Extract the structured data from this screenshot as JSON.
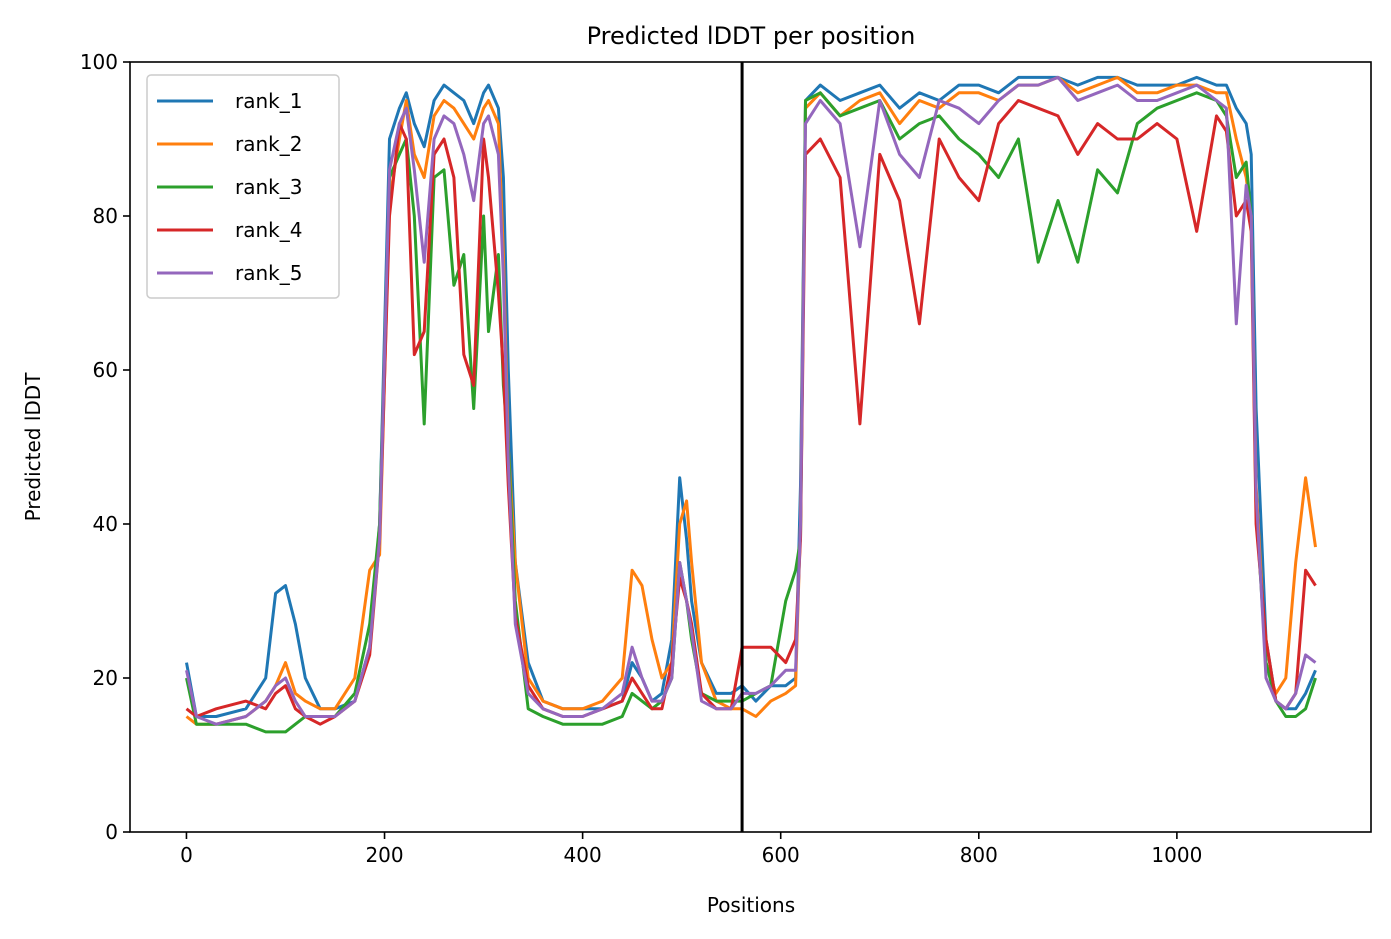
{
  "chart_data": {
    "type": "line",
    "title": "Predicted lDDT per position",
    "xlabel": "Positions",
    "ylabel": "Predicted lDDT",
    "xlim": [
      -57,
      1196
    ],
    "ylim": [
      0,
      100
    ],
    "xticks": [
      0,
      200,
      400,
      600,
      800,
      1000
    ],
    "yticks": [
      0,
      20,
      40,
      60,
      80,
      100
    ],
    "grid": false,
    "legend_position": "upper-left",
    "vline_x": 561,
    "series": [
      {
        "name": "rank_1",
        "color": "#1f77b4",
        "x": [
          0,
          10,
          30,
          60,
          80,
          90,
          100,
          110,
          120,
          135,
          150,
          170,
          185,
          195,
          205,
          215,
          222,
          230,
          240,
          250,
          260,
          270,
          280,
          290,
          300,
          305,
          315,
          320,
          325,
          332,
          345,
          360,
          380,
          400,
          420,
          440,
          450,
          460,
          470,
          480,
          490,
          498,
          505,
          510,
          520,
          535,
          550,
          561,
          575,
          590,
          605,
          615,
          620,
          625,
          640,
          660,
          680,
          700,
          720,
          740,
          760,
          780,
          800,
          820,
          840,
          860,
          880,
          900,
          920,
          940,
          960,
          980,
          1000,
          1020,
          1040,
          1050,
          1060,
          1070,
          1075,
          1080,
          1090,
          1100,
          1110,
          1120,
          1130,
          1140
        ],
        "values": [
          22,
          15,
          15,
          16,
          20,
          31,
          32,
          27,
          20,
          16,
          16,
          17,
          24,
          40,
          90,
          94,
          96,
          92,
          89,
          95,
          97,
          96,
          95,
          92,
          96,
          97,
          94,
          85,
          60,
          35,
          22,
          17,
          16,
          16,
          16,
          17,
          22,
          20,
          17,
          18,
          25,
          46,
          38,
          30,
          22,
          18,
          18,
          19,
          17,
          19,
          19,
          20,
          45,
          95,
          97,
          95,
          96,
          97,
          94,
          96,
          95,
          97,
          97,
          96,
          98,
          98,
          98,
          97,
          98,
          98,
          97,
          97,
          97,
          98,
          97,
          97,
          94,
          92,
          88,
          55,
          25,
          17,
          16,
          16,
          18,
          21
        ]
      },
      {
        "name": "rank_2",
        "color": "#ff7f0e",
        "x": [
          0,
          10,
          30,
          60,
          80,
          90,
          100,
          110,
          120,
          135,
          150,
          170,
          185,
          195,
          205,
          215,
          222,
          230,
          240,
          250,
          260,
          270,
          280,
          290,
          300,
          305,
          315,
          320,
          325,
          332,
          345,
          360,
          380,
          400,
          420,
          440,
          450,
          460,
          470,
          480,
          490,
          498,
          505,
          510,
          520,
          535,
          550,
          561,
          575,
          590,
          605,
          615,
          620,
          625,
          640,
          660,
          680,
          700,
          720,
          740,
          760,
          780,
          800,
          820,
          840,
          860,
          880,
          900,
          920,
          940,
          960,
          980,
          1000,
          1020,
          1040,
          1050,
          1060,
          1070,
          1075,
          1080,
          1090,
          1100,
          1110,
          1120,
          1130,
          1140
        ],
        "values": [
          15,
          14,
          14,
          15,
          17,
          19,
          22,
          18,
          17,
          16,
          16,
          20,
          34,
          36,
          82,
          90,
          95,
          88,
          85,
          93,
          95,
          94,
          92,
          90,
          94,
          95,
          92,
          75,
          50,
          35,
          20,
          17,
          16,
          16,
          17,
          20,
          34,
          32,
          25,
          20,
          22,
          40,
          43,
          35,
          22,
          17,
          16,
          16,
          15,
          17,
          18,
          19,
          40,
          94,
          96,
          93,
          95,
          96,
          92,
          95,
          94,
          96,
          96,
          95,
          97,
          97,
          98,
          96,
          97,
          98,
          96,
          96,
          97,
          97,
          96,
          96,
          90,
          85,
          80,
          45,
          22,
          18,
          20,
          35,
          46,
          37
        ]
      },
      {
        "name": "rank_3",
        "color": "#2ca02c",
        "x": [
          0,
          10,
          30,
          60,
          80,
          90,
          100,
          110,
          120,
          135,
          150,
          170,
          185,
          195,
          205,
          215,
          222,
          230,
          240,
          250,
          260,
          270,
          280,
          290,
          300,
          305,
          315,
          320,
          325,
          332,
          345,
          360,
          380,
          400,
          420,
          440,
          450,
          460,
          470,
          480,
          490,
          498,
          505,
          510,
          520,
          535,
          550,
          561,
          575,
          590,
          605,
          615,
          620,
          625,
          640,
          660,
          680,
          700,
          720,
          740,
          760,
          780,
          800,
          820,
          840,
          860,
          880,
          900,
          920,
          940,
          960,
          980,
          1000,
          1020,
          1040,
          1050,
          1060,
          1070,
          1075,
          1080,
          1090,
          1100,
          1110,
          1120,
          1130,
          1140
        ],
        "values": [
          20,
          14,
          14,
          14,
          13,
          13,
          13,
          14,
          15,
          15,
          15,
          18,
          27,
          40,
          85,
          88,
          90,
          80,
          53,
          85,
          86,
          71,
          75,
          55,
          80,
          65,
          75,
          58,
          50,
          30,
          16,
          15,
          14,
          14,
          14,
          15,
          18,
          17,
          16,
          17,
          20,
          35,
          30,
          25,
          18,
          17,
          17,
          17,
          18,
          19,
          30,
          34,
          38,
          95,
          96,
          93,
          94,
          95,
          90,
          92,
          93,
          90,
          88,
          85,
          90,
          74,
          82,
          74,
          86,
          83,
          92,
          94,
          95,
          96,
          95,
          93,
          85,
          87,
          80,
          42,
          22,
          17,
          15,
          15,
          16,
          20
        ]
      },
      {
        "name": "rank_4",
        "color": "#d62728",
        "x": [
          0,
          10,
          30,
          60,
          80,
          90,
          100,
          110,
          120,
          135,
          150,
          170,
          185,
          195,
          205,
          215,
          222,
          230,
          240,
          250,
          260,
          270,
          280,
          290,
          300,
          305,
          315,
          320,
          325,
          332,
          345,
          360,
          380,
          400,
          420,
          440,
          450,
          460,
          470,
          480,
          490,
          498,
          505,
          510,
          520,
          535,
          550,
          561,
          575,
          590,
          605,
          615,
          620,
          625,
          640,
          660,
          680,
          700,
          720,
          740,
          760,
          780,
          800,
          820,
          840,
          860,
          880,
          900,
          920,
          940,
          960,
          980,
          1000,
          1020,
          1040,
          1050,
          1060,
          1070,
          1075,
          1080,
          1090,
          1100,
          1110,
          1120,
          1130,
          1140
        ],
        "values": [
          16,
          15,
          16,
          17,
          16,
          18,
          19,
          16,
          15,
          14,
          15,
          17,
          23,
          38,
          80,
          92,
          90,
          62,
          65,
          88,
          90,
          85,
          62,
          58,
          90,
          85,
          70,
          60,
          45,
          28,
          19,
          16,
          15,
          15,
          16,
          17,
          20,
          18,
          16,
          16,
          22,
          33,
          30,
          27,
          18,
          16,
          16,
          24,
          24,
          24,
          22,
          25,
          38,
          88,
          90,
          85,
          53,
          88,
          82,
          66,
          90,
          85,
          82,
          92,
          95,
          94,
          93,
          88,
          92,
          90,
          90,
          92,
          90,
          78,
          93,
          91,
          80,
          82,
          78,
          40,
          25,
          17,
          16,
          18,
          34,
          32
        ]
      },
      {
        "name": "rank_5",
        "color": "#9467bd",
        "x": [
          0,
          10,
          30,
          60,
          80,
          90,
          100,
          110,
          120,
          135,
          150,
          170,
          185,
          195,
          205,
          215,
          222,
          230,
          240,
          250,
          260,
          270,
          280,
          290,
          300,
          305,
          315,
          320,
          325,
          332,
          345,
          360,
          380,
          400,
          420,
          440,
          450,
          460,
          470,
          480,
          490,
          498,
          505,
          510,
          520,
          535,
          550,
          561,
          575,
          590,
          605,
          615,
          620,
          625,
          640,
          660,
          680,
          700,
          720,
          740,
          760,
          780,
          800,
          820,
          840,
          860,
          880,
          900,
          920,
          940,
          960,
          980,
          1000,
          1020,
          1040,
          1050,
          1060,
          1070,
          1075,
          1080,
          1090,
          1100,
          1110,
          1120,
          1130,
          1140
        ],
        "values": [
          21,
          15,
          14,
          15,
          17,
          19,
          20,
          17,
          15,
          15,
          15,
          17,
          24,
          38,
          86,
          92,
          94,
          86,
          74,
          90,
          93,
          92,
          88,
          82,
          92,
          93,
          88,
          72,
          48,
          27,
          18,
          16,
          15,
          15,
          16,
          18,
          24,
          20,
          17,
          17,
          20,
          35,
          30,
          26,
          17,
          16,
          16,
          18,
          18,
          19,
          21,
          21,
          40,
          92,
          95,
          92,
          76,
          95,
          88,
          85,
          95,
          94,
          92,
          95,
          97,
          97,
          98,
          95,
          96,
          97,
          95,
          95,
          96,
          97,
          95,
          94,
          66,
          84,
          80,
          44,
          20,
          17,
          16,
          18,
          23,
          22
        ]
      }
    ]
  }
}
